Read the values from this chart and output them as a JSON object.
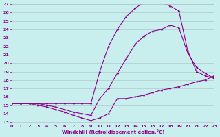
{
  "xlabel": "Windchill (Refroidissement éolien,°C)",
  "bg_color": "#c8eeed",
  "line_color": "#8b008b",
  "grid_color": "#b0c8c8",
  "xlim": [
    0,
    23
  ],
  "ylim": [
    13,
    27
  ],
  "xticks": [
    0,
    1,
    2,
    3,
    4,
    5,
    6,
    7,
    8,
    9,
    10,
    11,
    12,
    13,
    14,
    15,
    16,
    17,
    18,
    19,
    20,
    21,
    22,
    23
  ],
  "yticks": [
    13,
    14,
    15,
    16,
    17,
    18,
    19,
    20,
    21,
    22,
    23,
    24,
    25,
    26,
    27
  ],
  "series": [
    {
      "x": [
        0,
        1,
        2,
        3,
        4,
        5,
        6,
        7,
        8,
        9,
        10,
        11,
        12,
        13,
        14,
        15,
        16,
        17,
        18,
        19,
        20,
        21,
        22,
        23
      ],
      "y": [
        15.2,
        15.2,
        15.2,
        15.2,
        15.2,
        15.2,
        15.2,
        15.2,
        15.2,
        15.2,
        19.0,
        22.0,
        24.0,
        25.5,
        26.5,
        27.2,
        27.5,
        27.2,
        26.8,
        26.2,
        21.5,
        19.0,
        18.5,
        18.2
      ]
    },
    {
      "x": [
        0,
        1,
        2,
        3,
        4,
        5,
        6,
        7,
        8,
        9,
        10,
        11,
        12,
        13,
        14,
        15,
        16,
        17,
        18,
        19,
        20,
        21,
        22,
        23
      ],
      "y": [
        15.2,
        15.2,
        15.2,
        15.2,
        15.0,
        14.8,
        14.5,
        14.2,
        14.0,
        13.8,
        15.8,
        17.0,
        18.8,
        20.5,
        22.2,
        23.2,
        23.8,
        24.0,
        24.5,
        24.2,
        21.2,
        19.5,
        18.8,
        18.2
      ]
    },
    {
      "x": [
        0,
        1,
        2,
        3,
        4,
        5,
        6,
        7,
        8,
        9,
        10,
        11,
        12,
        13,
        14,
        15,
        16,
        17,
        18,
        19,
        20,
        21,
        22,
        23
      ],
      "y": [
        15.2,
        15.2,
        15.2,
        15.0,
        14.8,
        14.5,
        14.2,
        13.8,
        13.5,
        13.2,
        13.5,
        14.0,
        15.8,
        15.8,
        16.0,
        16.2,
        16.5,
        16.8,
        17.0,
        17.2,
        17.5,
        17.8,
        18.0,
        18.5
      ]
    }
  ]
}
